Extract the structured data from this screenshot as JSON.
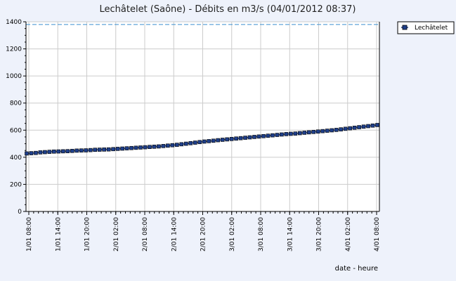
{
  "chart_data": {
    "type": "line",
    "title": "Lechâtelet (Saône) - Débits en m3/s (04/01/2012 08:37)",
    "xlabel": "date - heure",
    "ylabel": "",
    "ylim": [
      0,
      1400
    ],
    "y_ticks": [
      0,
      200,
      400,
      600,
      800,
      1000,
      1200,
      1400
    ],
    "x_tick_labels": [
      "1/01 08:00",
      "1/01 14:00",
      "1/01 20:00",
      "2/01 02:00",
      "2/01 08:00",
      "2/01 14:00",
      "2/01 20:00",
      "3/01 02:00",
      "3/01 08:00",
      "3/01 14:00",
      "3/01 20:00",
      "4/01 02:00",
      "4/01 08:00"
    ],
    "x_start": "1/01 08:00",
    "x_end": "4/01 08:00",
    "reference_line": 1380,
    "grid": true,
    "legend_position": "top-right",
    "colors": {
      "background": "#eef2fb",
      "plot_background": "#ffffff",
      "grid": "#cccccc",
      "series_fill": "#1f3f8a",
      "series_line": "#1f3f8a",
      "reference_line": "#3a8fd0"
    },
    "series": [
      {
        "name": "Lechâtelet",
        "marker": "square",
        "values": [
          428,
          430,
          432,
          436,
          438,
          440,
          442,
          443,
          444,
          445,
          447,
          449,
          450,
          451,
          453,
          455,
          456,
          457,
          458,
          460,
          462,
          464,
          466,
          468,
          470,
          472,
          474,
          476,
          478,
          480,
          483,
          486,
          489,
          492,
          496,
          500,
          504,
          508,
          512,
          516,
          519,
          522,
          526,
          529,
          532,
          535,
          538,
          541,
          544,
          547,
          550,
          553,
          556,
          559,
          562,
          565,
          568,
          571,
          573,
          575,
          578,
          581,
          584,
          587,
          590,
          593,
          596,
          599,
          602,
          606,
          610,
          614,
          618,
          622,
          626,
          630,
          634,
          638
        ]
      }
    ]
  }
}
